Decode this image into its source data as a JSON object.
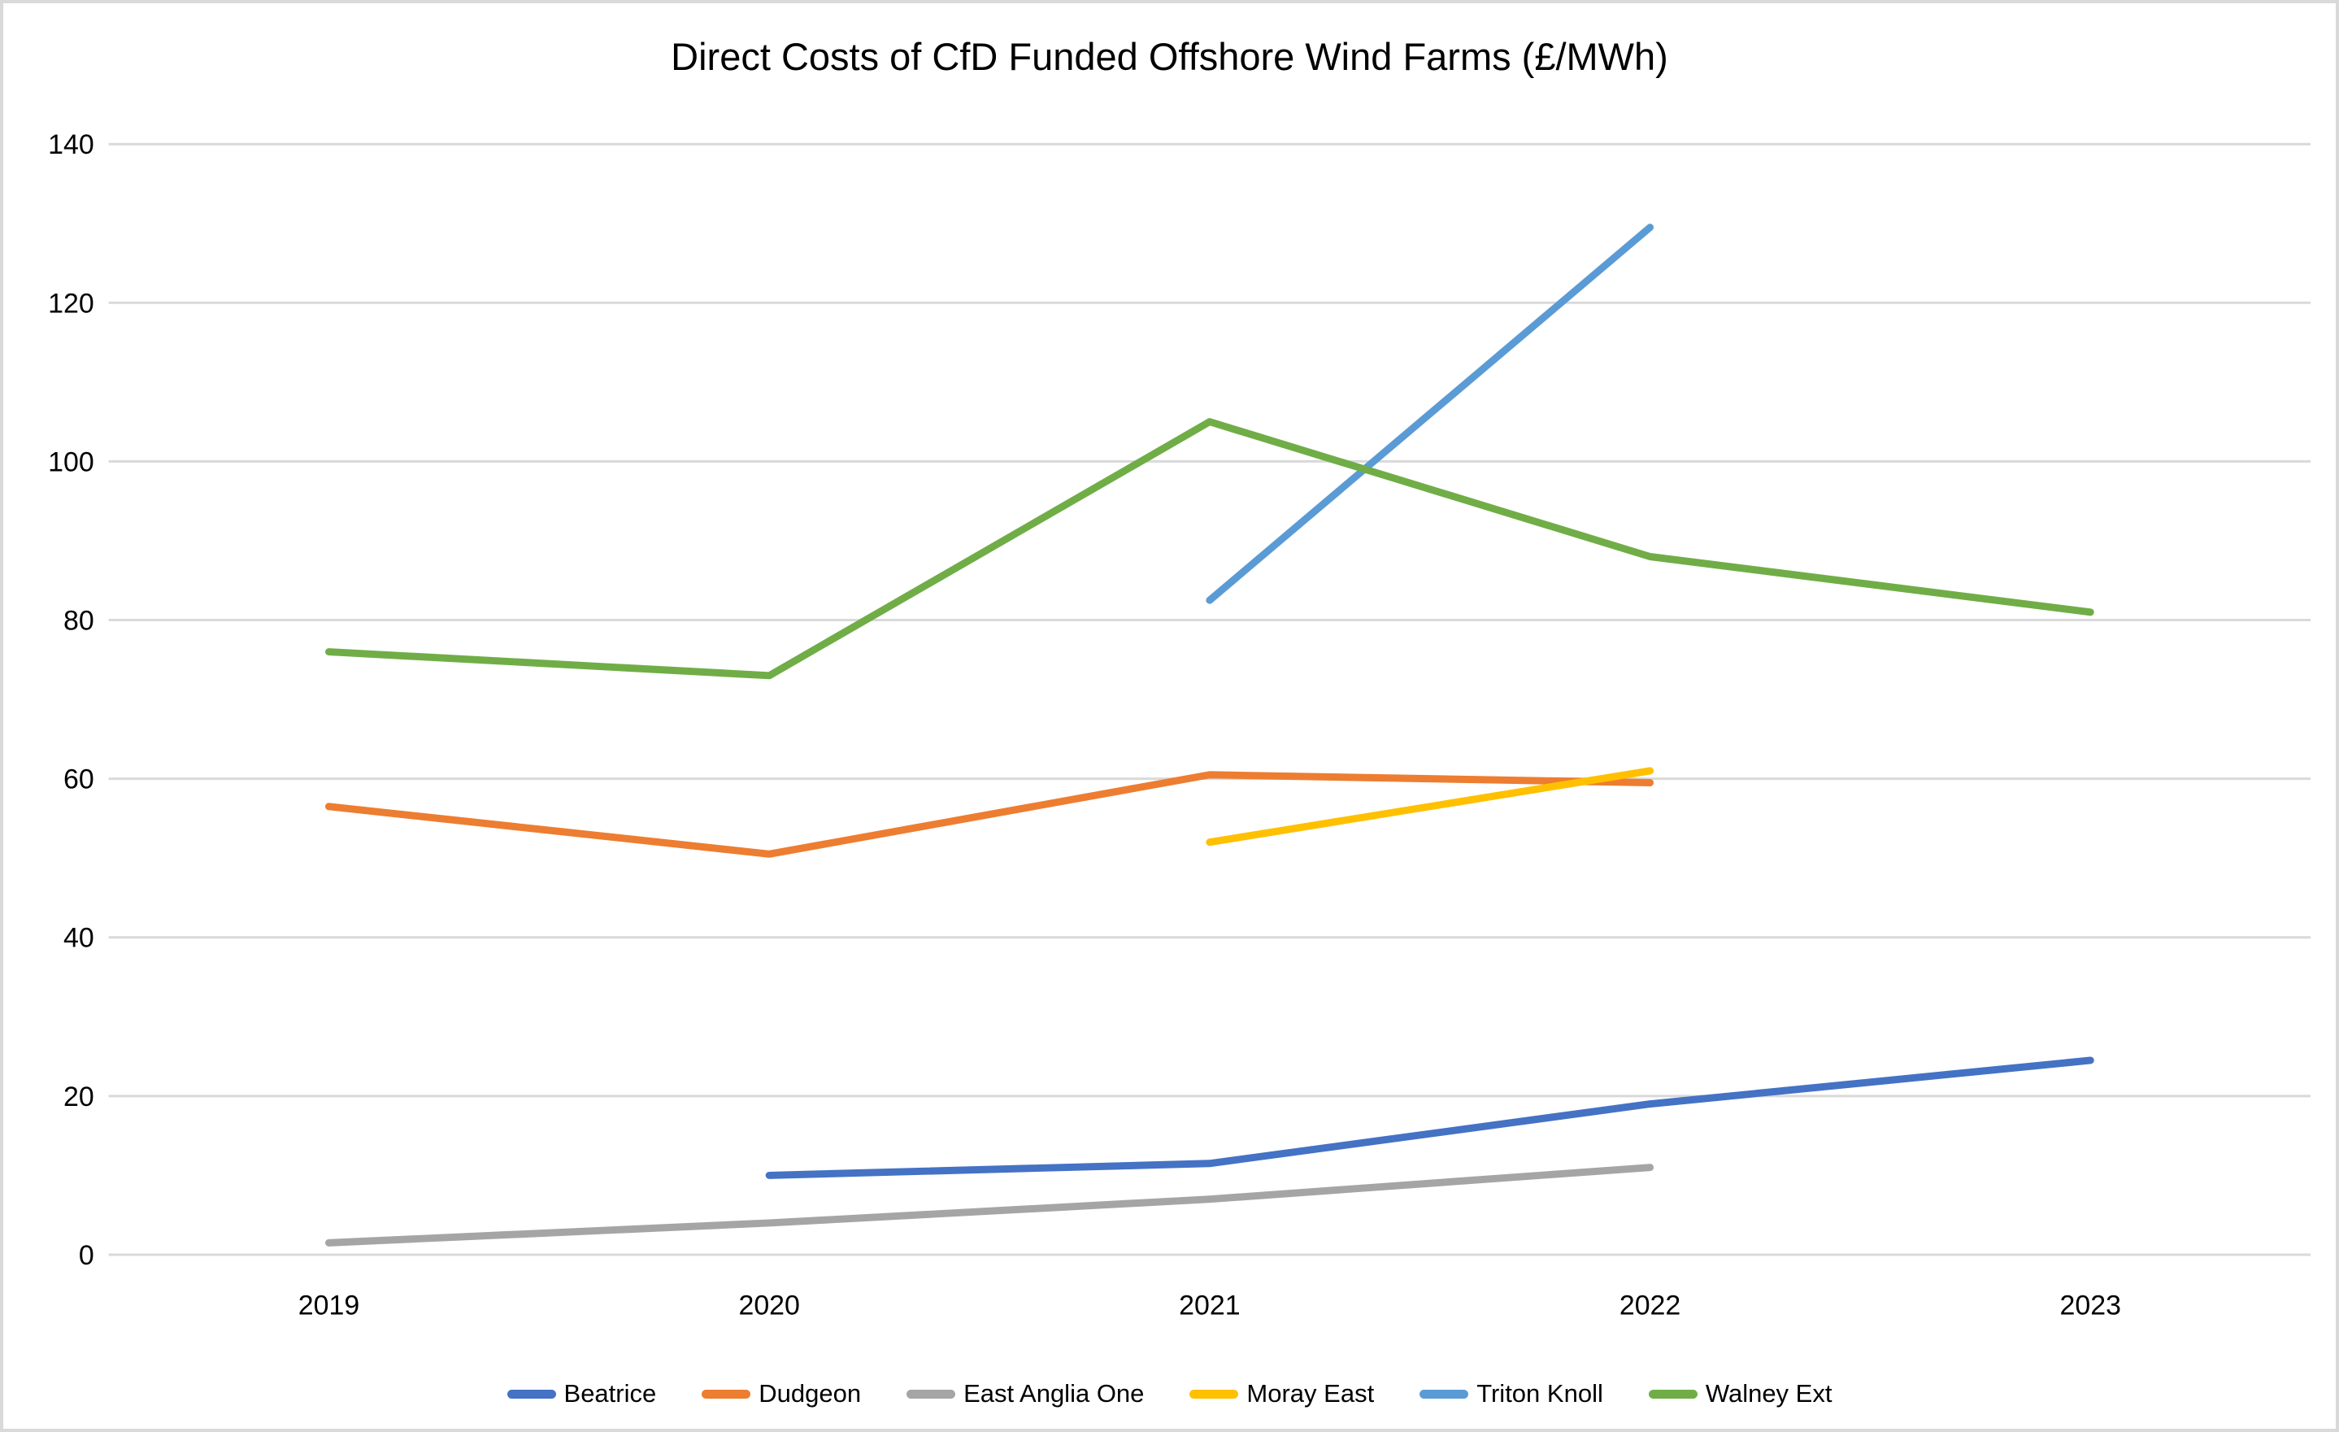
{
  "chart_data": {
    "type": "line",
    "title": "Direct Costs of CfD Funded Offshore Wind Farms (£/MWh)",
    "xlabel": "",
    "ylabel": "",
    "categories": [
      "2019",
      "2020",
      "2021",
      "2022",
      "2023"
    ],
    "y_ticks": [
      0,
      20,
      40,
      60,
      80,
      100,
      120,
      140
    ],
    "ylim": [
      0,
      140
    ],
    "grid": "horizontal",
    "legend_position": "bottom",
    "series": [
      {
        "name": "Beatrice",
        "color": "#4472C4",
        "values": [
          null,
          10,
          11.5,
          19,
          24.5
        ]
      },
      {
        "name": "Dudgeon",
        "color": "#ED7D31",
        "values": [
          56.5,
          50.5,
          60.5,
          59.5,
          null
        ]
      },
      {
        "name": "East Anglia One",
        "color": "#A5A5A5",
        "values": [
          1.5,
          4,
          7,
          11,
          null
        ]
      },
      {
        "name": "Moray East",
        "color": "#FFC000",
        "values": [
          null,
          null,
          52,
          61,
          null
        ]
      },
      {
        "name": "Triton Knoll",
        "color": "#5B9BD5",
        "values": [
          null,
          null,
          82.5,
          129.5,
          null
        ]
      },
      {
        "name": "Walney Ext",
        "color": "#70AD47",
        "values": [
          76,
          73,
          105,
          88,
          81
        ]
      }
    ],
    "colors": {
      "gridline": "#D9D9D9",
      "axis_text": "#000000",
      "background": "#FFFFFF",
      "frame_border": "#D9D9D9"
    }
  }
}
